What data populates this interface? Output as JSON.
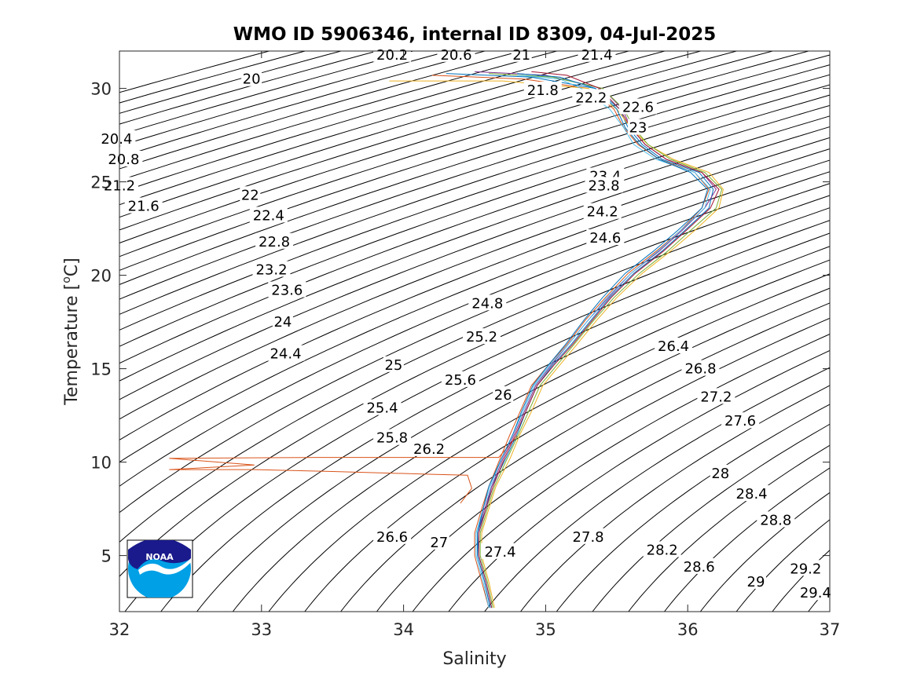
{
  "chart_data": {
    "type": "line",
    "title": "WMO ID 5906346, internal ID 8309, 04-Jul-2025",
    "xlabel": "Salinity",
    "ylabel": "Temperature [",
    "ylabel_unit_sup": "o",
    "ylabel_unit": "C]",
    "xlim": [
      32,
      37
    ],
    "ylim": [
      2,
      32
    ],
    "xticks": [
      32,
      33,
      34,
      35,
      36,
      37
    ],
    "yticks": [
      5,
      10,
      15,
      20,
      25,
      30
    ],
    "xtick_labels": [
      "32",
      "33",
      "34",
      "35",
      "36",
      "37"
    ],
    "ytick_labels": [
      "5",
      "10",
      "15",
      "20",
      "25",
      "30"
    ],
    "grid": false,
    "background_contours": {
      "quantity": "potential density anomaly (sigma-theta)",
      "interval": 0.2,
      "color": "#000000",
      "labels": [
        {
          "text": "20.2",
          "s": 33.92,
          "t": 31.8
        },
        {
          "text": "20.6",
          "s": 34.37,
          "t": 31.8
        },
        {
          "text": "21",
          "s": 34.83,
          "t": 31.8
        },
        {
          "text": "21.4",
          "s": 35.36,
          "t": 31.8
        },
        {
          "text": "20",
          "s": 32.93,
          "t": 30.5
        },
        {
          "text": "21.8",
          "s": 34.98,
          "t": 29.9
        },
        {
          "text": "22.2",
          "s": 35.32,
          "t": 29.5
        },
        {
          "text": "22.6",
          "s": 35.65,
          "t": 29.0
        },
        {
          "text": "23",
          "s": 35.65,
          "t": 27.9
        },
        {
          "text": "20.4",
          "s": 31.98,
          "t": 27.3
        },
        {
          "text": "20.8",
          "s": 32.03,
          "t": 26.2
        },
        {
          "text": "23.4",
          "s": 35.42,
          "t": 25.3
        },
        {
          "text": "21.2",
          "s": 32.0,
          "t": 24.8
        },
        {
          "text": "23.8",
          "s": 35.41,
          "t": 24.8
        },
        {
          "text": "22",
          "s": 32.92,
          "t": 24.3
        },
        {
          "text": "21.6",
          "s": 32.17,
          "t": 23.7
        },
        {
          "text": "24.2",
          "s": 35.4,
          "t": 23.4
        },
        {
          "text": "22.4",
          "s": 33.05,
          "t": 23.2
        },
        {
          "text": "24.6",
          "s": 35.42,
          "t": 22.0
        },
        {
          "text": "22.8",
          "s": 33.09,
          "t": 21.8
        },
        {
          "text": "23.2",
          "s": 33.07,
          "t": 20.3
        },
        {
          "text": "23.6",
          "s": 33.18,
          "t": 19.2
        },
        {
          "text": "24.8",
          "s": 34.59,
          "t": 18.5
        },
        {
          "text": "24",
          "s": 33.15,
          "t": 17.5
        },
        {
          "text": "25.2",
          "s": 34.55,
          "t": 16.7
        },
        {
          "text": "26.4",
          "s": 35.9,
          "t": 16.2
        },
        {
          "text": "24.4",
          "s": 33.17,
          "t": 15.8
        },
        {
          "text": "25",
          "s": 33.93,
          "t": 15.2
        },
        {
          "text": "26.8",
          "s": 36.09,
          "t": 15.0
        },
        {
          "text": "25.6",
          "s": 34.4,
          "t": 14.4
        },
        {
          "text": "26",
          "s": 34.7,
          "t": 13.6
        },
        {
          "text": "27.2",
          "s": 36.2,
          "t": 13.5
        },
        {
          "text": "25.4",
          "s": 33.85,
          "t": 12.9
        },
        {
          "text": "27.6",
          "s": 36.37,
          "t": 12.2
        },
        {
          "text": "25.8",
          "s": 33.92,
          "t": 11.3
        },
        {
          "text": "26.2",
          "s": 34.18,
          "t": 10.7
        },
        {
          "text": "28",
          "s": 36.23,
          "t": 9.4
        },
        {
          "text": "28.4",
          "s": 36.45,
          "t": 8.3
        },
        {
          "text": "28.8",
          "s": 36.62,
          "t": 6.9
        },
        {
          "text": "26.6",
          "s": 33.92,
          "t": 6.0
        },
        {
          "text": "27.8",
          "s": 35.3,
          "t": 6.0
        },
        {
          "text": "27",
          "s": 34.25,
          "t": 5.7
        },
        {
          "text": "27.4",
          "s": 34.68,
          "t": 5.2
        },
        {
          "text": "28.2",
          "s": 35.82,
          "t": 5.3
        },
        {
          "text": "28.6",
          "s": 36.08,
          "t": 4.4
        },
        {
          "text": "29.2",
          "s": 36.83,
          "t": 4.3
        },
        {
          "text": "29",
          "s": 36.48,
          "t": 3.6
        },
        {
          "text": "29.4",
          "s": 36.9,
          "t": 3.0
        }
      ]
    },
    "series": [
      {
        "color": "#0072BD",
        "points": [
          [
            34.62,
            2.2
          ],
          [
            34.58,
            3.6
          ],
          [
            34.53,
            5.0
          ],
          [
            34.52,
            6.2
          ],
          [
            34.58,
            7.5
          ],
          [
            34.62,
            8.7
          ],
          [
            34.72,
            10.2
          ],
          [
            34.8,
            11.5
          ],
          [
            34.86,
            12.7
          ],
          [
            34.94,
            14.1
          ],
          [
            35.05,
            15.2
          ],
          [
            35.18,
            16.3
          ],
          [
            35.32,
            17.6
          ],
          [
            35.45,
            18.8
          ],
          [
            35.62,
            20.1
          ],
          [
            35.82,
            21.3
          ],
          [
            35.98,
            22.4
          ],
          [
            36.15,
            23.6
          ],
          [
            36.18,
            24.6
          ],
          [
            36.08,
            25.5
          ],
          [
            35.82,
            26.2
          ],
          [
            35.68,
            27.0
          ],
          [
            35.58,
            27.9
          ],
          [
            35.52,
            28.9
          ],
          [
            35.35,
            30.0
          ],
          [
            34.9,
            30.6
          ],
          [
            34.3,
            30.8
          ]
        ]
      },
      {
        "color": "#D95319",
        "points": [
          [
            34.6,
            2.2
          ],
          [
            34.55,
            3.6
          ],
          [
            34.5,
            5.0
          ],
          [
            34.5,
            6.2
          ],
          [
            34.55,
            7.5
          ],
          [
            34.6,
            8.7
          ],
          [
            34.68,
            10.2
          ],
          [
            34.75,
            11.5
          ],
          [
            34.82,
            12.7
          ],
          [
            34.9,
            14.1
          ],
          [
            35.02,
            15.2
          ],
          [
            35.15,
            16.3
          ],
          [
            35.28,
            17.6
          ],
          [
            35.42,
            18.8
          ],
          [
            35.58,
            20.1
          ],
          [
            35.78,
            21.3
          ],
          [
            35.95,
            22.4
          ],
          [
            36.1,
            23.6
          ],
          [
            36.15,
            24.6
          ],
          [
            36.05,
            25.5
          ],
          [
            35.8,
            26.2
          ],
          [
            35.65,
            27.0
          ],
          [
            35.55,
            27.9
          ],
          [
            35.48,
            28.9
          ],
          [
            35.3,
            30.0
          ],
          [
            34.85,
            30.5
          ],
          [
            34.2,
            30.7
          ]
        ]
      },
      {
        "color": "#D95319",
        "points": [
          [
            34.4,
            7.8
          ],
          [
            34.48,
            8.6
          ],
          [
            34.45,
            9.3
          ],
          [
            34.2,
            9.35
          ],
          [
            33.5,
            9.5
          ],
          [
            32.95,
            9.6
          ],
          [
            32.35,
            9.6
          ],
          [
            32.95,
            9.85
          ],
          [
            32.35,
            10.2
          ],
          [
            33.4,
            10.25
          ],
          [
            34.67,
            10.25
          ],
          [
            34.8,
            11.4
          ]
        ]
      },
      {
        "color": "#EDB120",
        "points": [
          [
            34.64,
            2.2
          ],
          [
            34.6,
            3.6
          ],
          [
            34.55,
            5.0
          ],
          [
            34.55,
            6.2
          ],
          [
            34.6,
            7.5
          ],
          [
            34.65,
            8.7
          ],
          [
            34.75,
            10.2
          ],
          [
            34.82,
            11.5
          ],
          [
            34.9,
            12.7
          ],
          [
            34.98,
            14.1
          ],
          [
            35.1,
            15.2
          ],
          [
            35.22,
            16.3
          ],
          [
            35.36,
            17.6
          ],
          [
            35.5,
            18.8
          ],
          [
            35.68,
            20.1
          ],
          [
            35.88,
            21.3
          ],
          [
            36.05,
            22.4
          ],
          [
            36.22,
            23.6
          ],
          [
            36.25,
            24.6
          ],
          [
            36.15,
            25.5
          ],
          [
            35.9,
            26.2
          ],
          [
            35.72,
            27.0
          ],
          [
            35.6,
            27.9
          ],
          [
            35.5,
            28.9
          ],
          [
            35.3,
            30.0
          ],
          [
            34.7,
            30.4
          ],
          [
            33.9,
            30.4
          ]
        ]
      },
      {
        "color": "#7E2F8E",
        "points": [
          [
            34.61,
            2.2
          ],
          [
            34.57,
            3.6
          ],
          [
            34.52,
            5.0
          ],
          [
            34.52,
            6.2
          ],
          [
            34.57,
            7.5
          ],
          [
            34.62,
            8.7
          ],
          [
            34.7,
            10.2
          ],
          [
            34.78,
            11.5
          ],
          [
            34.85,
            12.7
          ],
          [
            34.93,
            14.1
          ],
          [
            35.04,
            15.2
          ],
          [
            35.16,
            16.3
          ],
          [
            35.3,
            17.6
          ],
          [
            35.44,
            18.8
          ],
          [
            35.6,
            20.1
          ],
          [
            35.8,
            21.3
          ],
          [
            35.96,
            22.4
          ],
          [
            36.12,
            23.6
          ],
          [
            36.2,
            24.6
          ],
          [
            36.1,
            25.5
          ],
          [
            35.85,
            26.2
          ],
          [
            35.7,
            27.0
          ],
          [
            35.6,
            27.9
          ],
          [
            35.54,
            28.9
          ],
          [
            35.4,
            30.0
          ],
          [
            35.0,
            30.7
          ],
          [
            34.5,
            30.9
          ]
        ]
      },
      {
        "color": "#77AC30",
        "points": [
          [
            34.63,
            2.2
          ],
          [
            34.59,
            3.6
          ],
          [
            34.54,
            5.0
          ],
          [
            34.54,
            6.2
          ],
          [
            34.59,
            7.5
          ],
          [
            34.64,
            8.7
          ],
          [
            34.73,
            10.2
          ],
          [
            34.81,
            11.5
          ],
          [
            34.88,
            12.7
          ],
          [
            34.96,
            14.1
          ],
          [
            35.08,
            15.2
          ],
          [
            35.2,
            16.3
          ],
          [
            35.34,
            17.6
          ],
          [
            35.48,
            18.8
          ],
          [
            35.66,
            20.1
          ],
          [
            35.86,
            21.3
          ],
          [
            36.02,
            22.4
          ],
          [
            36.2,
            23.6
          ],
          [
            36.24,
            24.6
          ],
          [
            36.12,
            25.5
          ],
          [
            35.88,
            26.2
          ],
          [
            35.72,
            27.0
          ],
          [
            35.62,
            27.9
          ],
          [
            35.55,
            28.9
          ],
          [
            35.4,
            30.0
          ],
          [
            35.05,
            30.6
          ],
          [
            34.6,
            30.8
          ]
        ]
      },
      {
        "color": "#4DBEEE",
        "points": [
          [
            34.6,
            2.2
          ],
          [
            34.56,
            3.6
          ],
          [
            34.51,
            5.0
          ],
          [
            34.51,
            6.2
          ],
          [
            34.56,
            7.5
          ],
          [
            34.61,
            8.7
          ],
          [
            34.69,
            10.2
          ],
          [
            34.77,
            11.5
          ],
          [
            34.84,
            12.7
          ],
          [
            34.92,
            14.1
          ],
          [
            35.03,
            15.2
          ],
          [
            35.16,
            16.3
          ],
          [
            35.3,
            17.6
          ],
          [
            35.43,
            18.8
          ],
          [
            35.6,
            20.1
          ],
          [
            35.79,
            21.3
          ],
          [
            35.95,
            22.4
          ],
          [
            36.12,
            23.6
          ],
          [
            36.16,
            24.6
          ],
          [
            36.05,
            25.5
          ],
          [
            35.78,
            26.2
          ],
          [
            35.62,
            27.0
          ],
          [
            35.55,
            27.9
          ],
          [
            35.45,
            28.9
          ],
          [
            35.25,
            30.0
          ],
          [
            35.1,
            30.5
          ],
          [
            34.8,
            30.7
          ]
        ]
      },
      {
        "color": "#A2142F",
        "points": [
          [
            34.62,
            2.2
          ],
          [
            34.58,
            3.6
          ],
          [
            34.53,
            5.0
          ],
          [
            34.53,
            6.2
          ],
          [
            34.58,
            7.5
          ],
          [
            34.63,
            8.7
          ],
          [
            34.71,
            10.2
          ],
          [
            34.79,
            11.5
          ],
          [
            34.86,
            12.7
          ],
          [
            34.94,
            14.1
          ],
          [
            35.06,
            15.2
          ],
          [
            35.19,
            16.3
          ],
          [
            35.33,
            17.6
          ],
          [
            35.46,
            18.8
          ],
          [
            35.63,
            20.1
          ],
          [
            35.83,
            21.3
          ],
          [
            35.99,
            22.4
          ],
          [
            36.16,
            23.6
          ],
          [
            36.22,
            24.6
          ],
          [
            36.1,
            25.5
          ],
          [
            35.85,
            26.2
          ],
          [
            35.7,
            27.0
          ],
          [
            35.6,
            27.9
          ],
          [
            35.52,
            28.9
          ],
          [
            35.38,
            30.0
          ],
          [
            35.15,
            30.7
          ],
          [
            34.9,
            30.9
          ]
        ]
      },
      {
        "color": "#0072BD",
        "points": [
          [
            34.61,
            2.2
          ],
          [
            34.57,
            3.6
          ],
          [
            34.52,
            5.0
          ],
          [
            34.52,
            6.2
          ],
          [
            34.56,
            7.5
          ],
          [
            34.6,
            8.7
          ],
          [
            34.69,
            10.2
          ],
          [
            34.77,
            11.5
          ],
          [
            34.83,
            12.7
          ],
          [
            34.91,
            14.1
          ],
          [
            35.02,
            15.2
          ],
          [
            35.14,
            16.3
          ],
          [
            35.27,
            17.6
          ],
          [
            35.4,
            18.8
          ],
          [
            35.56,
            20.1
          ],
          [
            35.76,
            21.3
          ],
          [
            35.93,
            22.4
          ],
          [
            36.1,
            23.6
          ],
          [
            36.14,
            24.6
          ],
          [
            36.02,
            25.5
          ],
          [
            35.8,
            26.2
          ],
          [
            35.66,
            27.0
          ],
          [
            35.56,
            27.9
          ],
          [
            35.5,
            28.9
          ],
          [
            35.35,
            30.0
          ],
          [
            35.1,
            30.6
          ],
          [
            34.8,
            30.8
          ]
        ]
      }
    ],
    "logo": {
      "text": "NOAA",
      "colors": {
        "navy": "#1a1a8c",
        "sky": "#00a0e6"
      }
    }
  }
}
